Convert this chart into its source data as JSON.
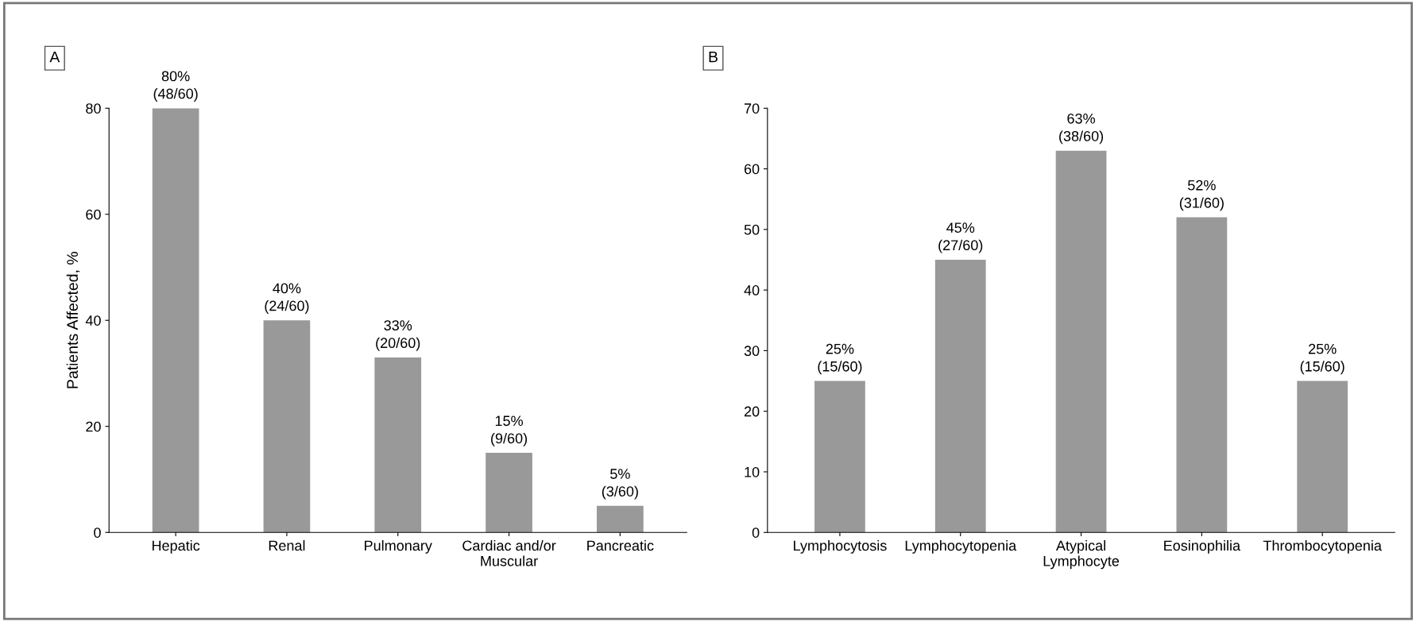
{
  "chart_data": [
    {
      "type": "bar",
      "annotations": [
        "A"
      ],
      "ylabel": "Patients Affected, %",
      "categories": [
        "Hepatic",
        "Renal",
        "Pulmonary",
        "Cardiac and/or\nMuscular",
        "Pancreatic"
      ],
      "values": [
        80,
        40,
        33,
        15,
        5
      ],
      "value_labels": [
        "80%\n(48/60)",
        "40%\n(24/60)",
        "33%\n(20/60)",
        "15%\n(9/60)",
        "5%\n(3/60)"
      ],
      "color": "#999999",
      "ylim": [
        0,
        80
      ],
      "yticks": [
        0,
        20,
        40,
        60,
        80
      ],
      "grid": false,
      "legend": false
    },
    {
      "type": "bar",
      "annotations": [
        "B"
      ],
      "categories": [
        "Lymphocytosis",
        "Lymphocytopenia",
        "Atypical\nLymphocyte",
        "Eosinophilia",
        "Thrombocytopenia"
      ],
      "values": [
        25,
        45,
        63,
        52,
        25
      ],
      "value_labels": [
        "25%\n(15/60)",
        "45%\n(27/60)",
        "63%\n(38/60)",
        "52%\n(31/60)",
        "25%\n(15/60)"
      ],
      "color": "#999999",
      "ylim": [
        0,
        70
      ],
      "yticks": [
        0,
        10,
        20,
        30,
        40,
        50,
        60,
        70
      ],
      "grid": false,
      "legend": false
    }
  ]
}
